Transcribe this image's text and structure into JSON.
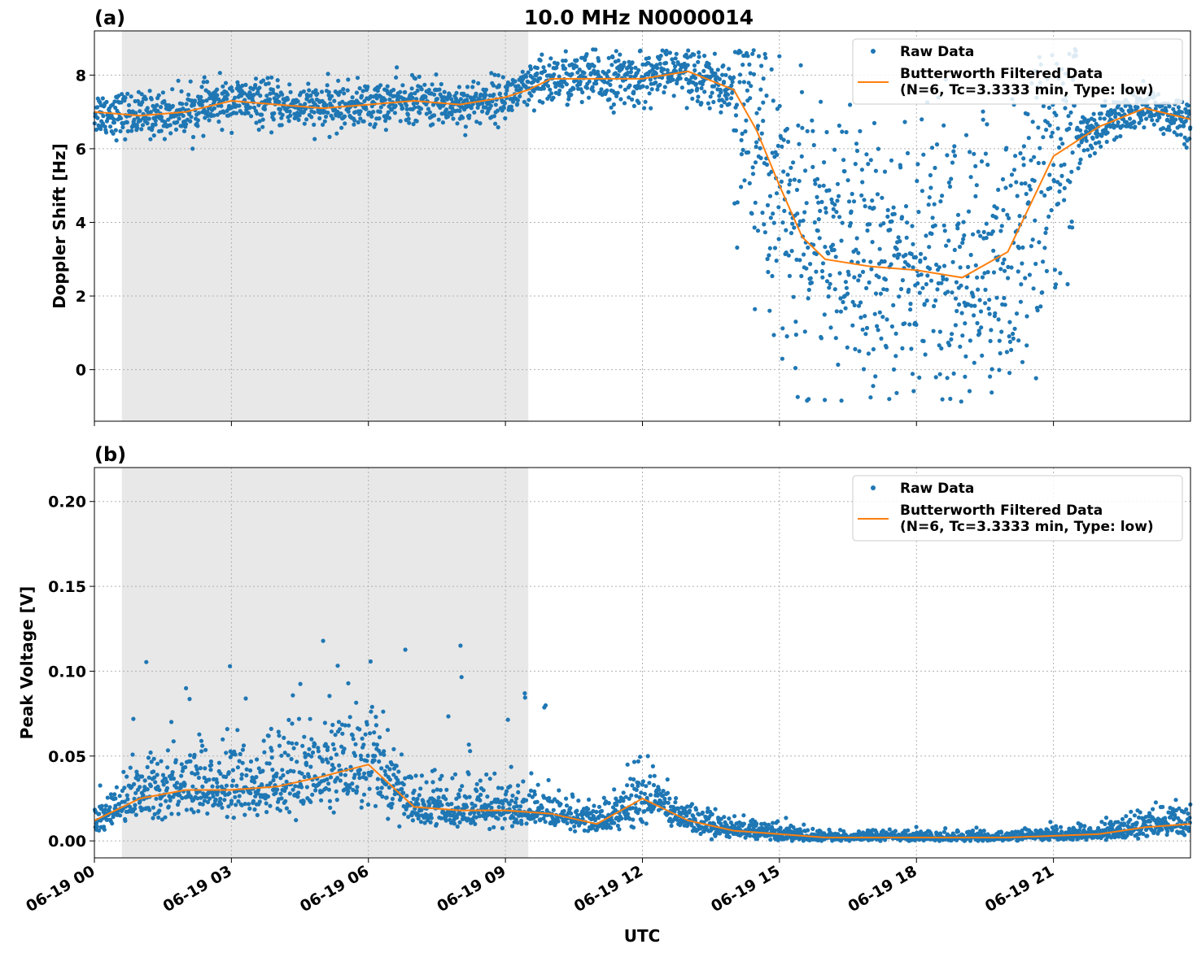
{
  "title": "10.0 MHz N0000014",
  "xlabel": "UTC",
  "colors": {
    "raw": "#1f77b4",
    "filtered": "#ff7f0e",
    "shade": "#e8e8e8",
    "grid": "#b0b0b0"
  },
  "x_range_hours": [
    0,
    24
  ],
  "x_tick_hours": [
    0,
    3,
    6,
    9,
    12,
    15,
    18,
    21
  ],
  "x_tick_labels": [
    "06-19 00",
    "06-19 03",
    "06-19 06",
    "06-19 09",
    "06-19 12",
    "06-19 15",
    "06-19 18",
    "06-19 21"
  ],
  "shaded_hours": [
    0.6,
    9.5
  ],
  "legend": {
    "raw_label": "Raw Data",
    "filtered_line1": "Butterworth Filtered Data",
    "filtered_line2": "(N=6, Tc=3.3333 min, Type: low)"
  },
  "chart_data": [
    {
      "type": "scatter",
      "panel_label": "(a)",
      "ylabel": "Doppler Shift [Hz]",
      "ylim": [
        -1.4,
        9.2
      ],
      "yticks": [
        0,
        2,
        4,
        6,
        8
      ],
      "ytick_labels": [
        "0",
        "2",
        "4",
        "6",
        "8"
      ],
      "grid": true,
      "legend_position": "top-right",
      "series": [
        {
          "name": "Raw Data",
          "kind": "points"
        },
        {
          "name": "Butterworth Filtered Data (N=6, Tc=3.3333 min, Type: low)",
          "kind": "line",
          "x": [
            0,
            1,
            2,
            3,
            4,
            5,
            6,
            7,
            8,
            9,
            9.5,
            10,
            11,
            12,
            13,
            14,
            14.5,
            15,
            15.5,
            16,
            17,
            18,
            19,
            20,
            20.5,
            21,
            22,
            23,
            24
          ],
          "y": [
            7.0,
            6.9,
            7.0,
            7.3,
            7.2,
            7.1,
            7.2,
            7.3,
            7.2,
            7.4,
            7.6,
            7.9,
            7.9,
            7.9,
            8.1,
            7.6,
            6.5,
            5.0,
            3.6,
            3.0,
            2.8,
            2.7,
            2.5,
            3.2,
            4.5,
            5.8,
            6.6,
            7.1,
            6.8
          ]
        }
      ]
    },
    {
      "type": "scatter",
      "panel_label": "(b)",
      "ylabel": "Peak Voltage [V]",
      "ylim": [
        -0.01,
        0.22
      ],
      "yticks": [
        0.0,
        0.05,
        0.1,
        0.15,
        0.2
      ],
      "ytick_labels": [
        "0.00",
        "0.05",
        "0.10",
        "0.15",
        "0.20"
      ],
      "grid": true,
      "legend_position": "top-right",
      "series": [
        {
          "name": "Raw Data",
          "kind": "points"
        },
        {
          "name": "Butterworth Filtered Data (N=6, Tc=3.3333 min, Type: low)",
          "kind": "line",
          "x": [
            0,
            1,
            2,
            3,
            4,
            5,
            6,
            7,
            8,
            9,
            10,
            11,
            12,
            13,
            14,
            15,
            16,
            17,
            18,
            19,
            20,
            21,
            22,
            23,
            24
          ],
          "y": [
            0.012,
            0.025,
            0.03,
            0.03,
            0.032,
            0.038,
            0.045,
            0.02,
            0.018,
            0.018,
            0.016,
            0.01,
            0.025,
            0.012,
            0.006,
            0.004,
            0.002,
            0.002,
            0.002,
            0.002,
            0.002,
            0.003,
            0.004,
            0.008,
            0.01
          ]
        }
      ]
    }
  ]
}
